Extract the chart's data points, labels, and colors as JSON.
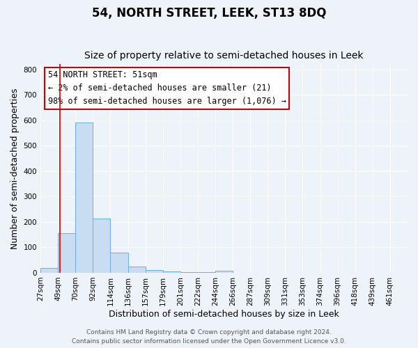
{
  "title": "54, NORTH STREET, LEEK, ST13 8DQ",
  "subtitle": "Size of property relative to semi-detached houses in Leek",
  "xlabel": "Distribution of semi-detached houses by size in Leek",
  "ylabel": "Number of semi-detached properties",
  "footer_line1": "Contains HM Land Registry data © Crown copyright and database right 2024.",
  "footer_line2": "Contains public sector information licensed under the Open Government Licence v3.0.",
  "annotation_title": "54 NORTH STREET: 51sqm",
  "annotation_line1": "← 2% of semi-detached houses are smaller (21)",
  "annotation_line2": "98% of semi-detached houses are larger (1,076) →",
  "bar_labels": [
    "27sqm",
    "49sqm",
    "70sqm",
    "92sqm",
    "114sqm",
    "136sqm",
    "157sqm",
    "179sqm",
    "201sqm",
    "222sqm",
    "244sqm",
    "266sqm",
    "287sqm",
    "309sqm",
    "331sqm",
    "353sqm",
    "374sqm",
    "396sqm",
    "418sqm",
    "439sqm",
    "461sqm"
  ],
  "bar_values": [
    20,
    155,
    590,
    213,
    78,
    25,
    10,
    5,
    3,
    2,
    7,
    1,
    0,
    1,
    0,
    0,
    0,
    0,
    0,
    0,
    0
  ],
  "bar_color": "#c9ddf2",
  "bar_edge_color": "#6aaee8",
  "vline_color": "#cc0000",
  "ylim": [
    0,
    820
  ],
  "yticks": [
    0,
    100,
    200,
    300,
    400,
    500,
    600,
    700,
    800
  ],
  "background_color": "#eef2f9",
  "annotation_box_color": "white",
  "annotation_box_edgecolor": "#cc0000",
  "title_fontsize": 12,
  "subtitle_fontsize": 10,
  "tick_fontsize": 7.5,
  "label_fontsize": 9,
  "annotation_fontsize": 8.5,
  "footer_fontsize": 6.5,
  "grid_color": "white"
}
